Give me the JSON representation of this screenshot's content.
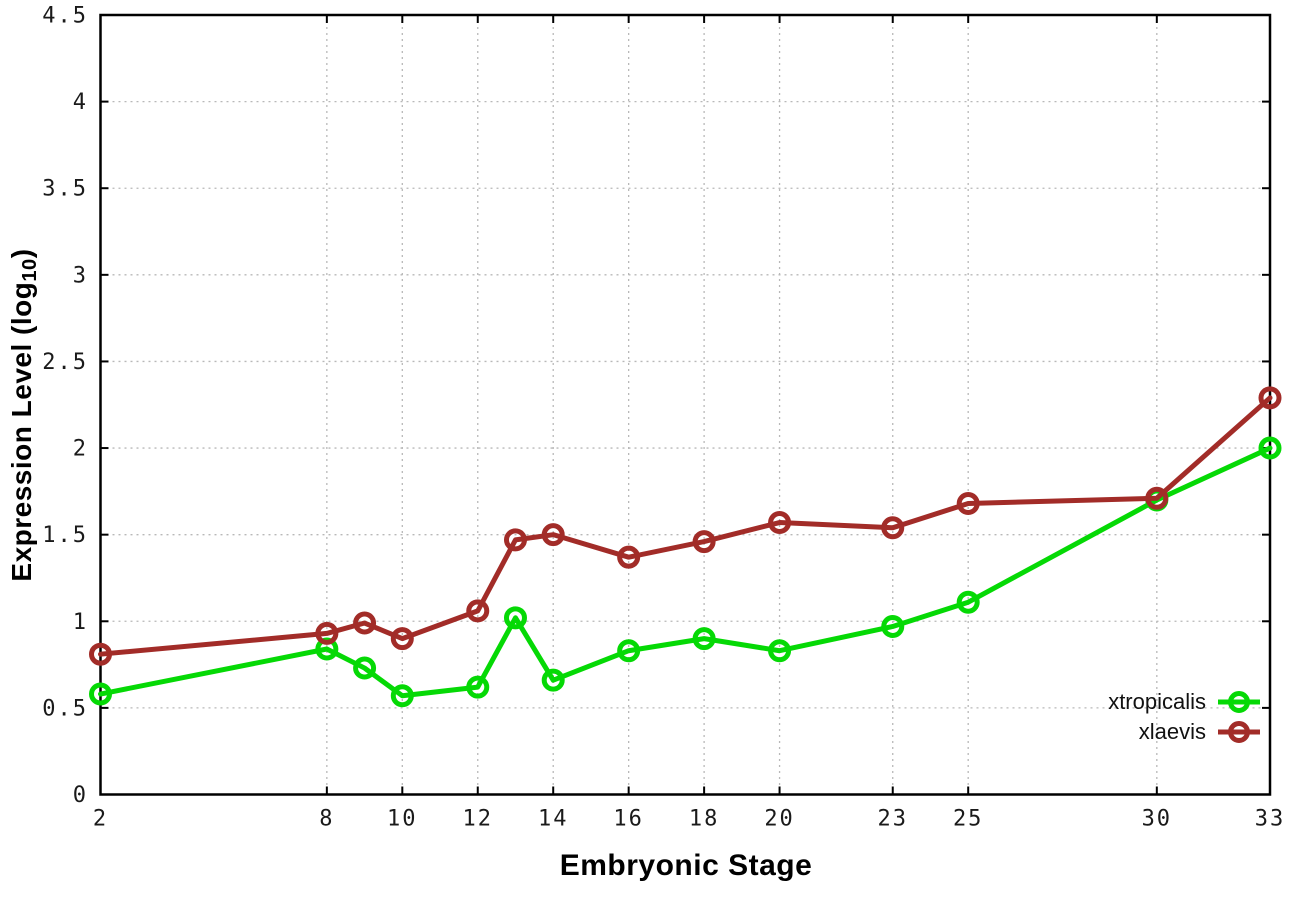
{
  "chart_data": {
    "type": "line",
    "title": "",
    "xlabel": "Embryonic Stage",
    "ylabel": "Expression Level (log10)",
    "ylabel_parts": {
      "main": "Expression Level (log",
      "sub": "10",
      "end": ")"
    },
    "xlim": [
      2,
      33
    ],
    "ylim": [
      0,
      4.5
    ],
    "grid": true,
    "grid_style": "dotted",
    "legend_position": "inside-bottom-right",
    "x": [
      2,
      8,
      9,
      10,
      12,
      13,
      14,
      16,
      18,
      20,
      23,
      25,
      30,
      33
    ],
    "x_tick_values": [
      2,
      8,
      10,
      12,
      14,
      16,
      18,
      20,
      23,
      25,
      30,
      33
    ],
    "x_tick_labels": [
      "2",
      "8",
      "10",
      "12",
      "14",
      "16",
      "18",
      "20",
      "23",
      "25",
      "30",
      "33"
    ],
    "y_tick_values": [
      0,
      0.5,
      1,
      1.5,
      2,
      2.5,
      3,
      3.5,
      4,
      4.5
    ],
    "y_tick_labels": [
      "0",
      "0.5",
      "1",
      "1.5",
      "2",
      "2.5",
      "3",
      "3.5",
      "4",
      "4.5"
    ],
    "series": [
      {
        "name": "xtropicalis",
        "color": "#05d905",
        "marker": "open-circle",
        "values": [
          0.58,
          0.84,
          0.73,
          0.57,
          0.62,
          1.02,
          0.66,
          0.83,
          0.9,
          0.83,
          0.97,
          1.11,
          1.7,
          2.0
        ]
      },
      {
        "name": "xlaevis",
        "color": "#a22c28",
        "marker": "open-circle",
        "values": [
          0.81,
          0.93,
          0.99,
          0.9,
          1.06,
          1.47,
          1.5,
          1.37,
          1.46,
          1.57,
          1.54,
          1.68,
          1.71,
          2.29
        ]
      }
    ],
    "style": {
      "border_color": "#000000",
      "grid_color": "#b8b8b8",
      "tick_label_color": "#1a1a1a",
      "background": "#ffffff"
    }
  }
}
